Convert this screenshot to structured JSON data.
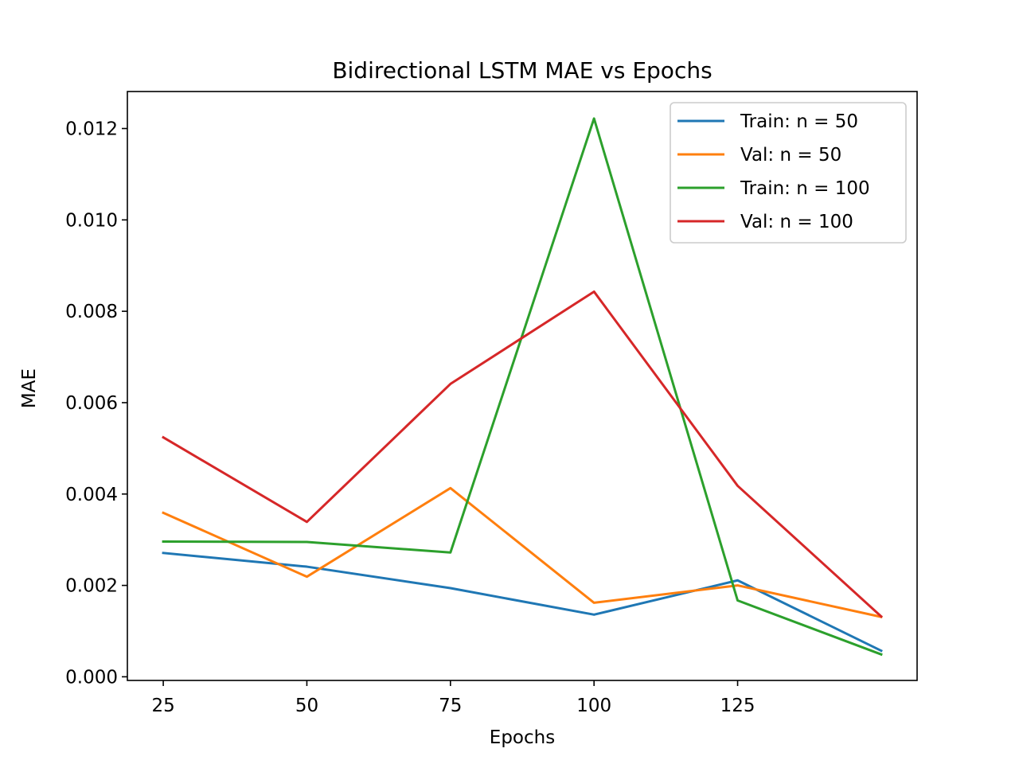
{
  "chart_data": {
    "type": "line",
    "title": "Bidirectional LSTM MAE vs Epochs",
    "xlabel": "Epochs",
    "ylabel": "MAE",
    "x": [
      25,
      50,
      75,
      100,
      125,
      150
    ],
    "xticks": [
      25,
      50,
      75,
      100,
      125
    ],
    "xtick_labels": [
      "25",
      "50",
      "75",
      "100",
      "125"
    ],
    "xlim": [
      18.75,
      156.25
    ],
    "yticks": [
      0.0,
      0.002,
      0.004,
      0.006,
      0.008,
      0.01,
      0.012
    ],
    "ytick_labels": [
      "0.000",
      "0.002",
      "0.004",
      "0.006",
      "0.008",
      "0.010",
      "0.012"
    ],
    "ylim": [
      -8e-05,
      0.01281
    ],
    "grid": false,
    "legend_position": "upper right",
    "series": [
      {
        "name": "Train: n = 50",
        "color": "#1f77b4",
        "values": [
          0.00271,
          0.00241,
          0.00194,
          0.00136,
          0.00211,
          0.00057
        ]
      },
      {
        "name": "Val: n = 50",
        "color": "#ff7f0e",
        "values": [
          0.00359,
          0.00219,
          0.00413,
          0.00162,
          0.002,
          0.00131
        ]
      },
      {
        "name": "Train: n = 100",
        "color": "#2ca02c",
        "values": [
          0.00296,
          0.00295,
          0.00272,
          0.01222,
          0.00167,
          0.00049
        ]
      },
      {
        "name": "Val: n = 100",
        "color": "#d62728",
        "values": [
          0.00524,
          0.00339,
          0.00641,
          0.00843,
          0.00418,
          0.00132
        ]
      }
    ]
  }
}
